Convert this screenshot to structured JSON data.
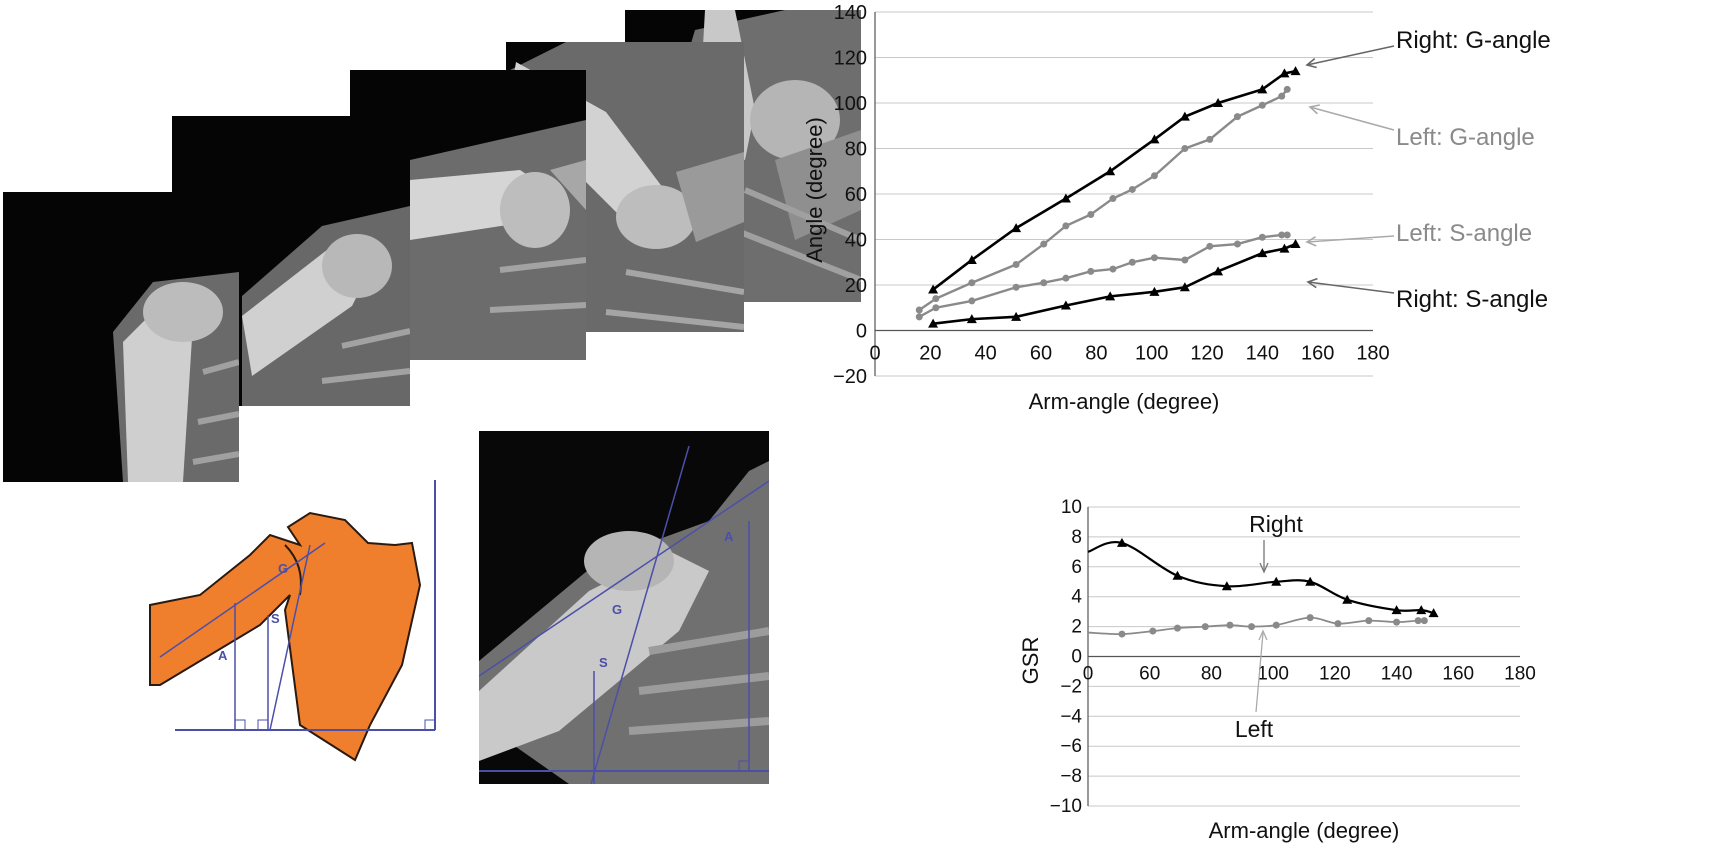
{
  "colors": {
    "right": "#000000",
    "left": "#8a8a8a",
    "scapula": "#ef7f2c",
    "annotation": "#4b4fa8"
  },
  "diagram": {
    "angle_labels": [
      "A",
      "G",
      "S"
    ]
  },
  "chart_data": [
    {
      "type": "line",
      "xlabel": "Arm-angle (degree)",
      "ylabel": "Angle (degree)",
      "xlim": [
        0,
        180
      ],
      "ylim": [
        -20,
        140
      ],
      "xticks": [
        "0",
        "20",
        "40",
        "60",
        "80",
        "100",
        "120",
        "140",
        "160",
        "180"
      ],
      "yticks": [
        "140",
        "120",
        "100",
        "80",
        "60",
        "40",
        "20",
        "0",
        "−20"
      ],
      "grid": true,
      "series": [
        {
          "name": "Right: G-angle",
          "color": "#000000",
          "marker": "triangle",
          "x": [
            21,
            35,
            51,
            69,
            85,
            101,
            112,
            124,
            140,
            148,
            152
          ],
          "y": [
            18,
            31,
            45,
            58,
            70,
            84,
            94,
            100,
            106,
            113,
            114
          ]
        },
        {
          "name": "Left: G-angle",
          "color": "#8a8a8a",
          "marker": "circle",
          "x": [
            16,
            22,
            35,
            51,
            61,
            69,
            78,
            86,
            93,
            101,
            112,
            121,
            131,
            140,
            147,
            149
          ],
          "y": [
            9,
            14,
            21,
            29,
            38,
            46,
            51,
            58,
            62,
            68,
            80,
            84,
            94,
            99,
            103,
            106
          ]
        },
        {
          "name": "Left: S-angle",
          "color": "#8a8a8a",
          "marker": "circle",
          "x": [
            16,
            22,
            35,
            51,
            61,
            69,
            78,
            86,
            93,
            101,
            112,
            121,
            131,
            140,
            147,
            149
          ],
          "y": [
            6,
            10,
            13,
            19,
            21,
            23,
            26,
            27,
            30,
            32,
            31,
            37,
            38,
            41,
            42,
            42
          ]
        },
        {
          "name": "Right: S-angle",
          "color": "#000000",
          "marker": "triangle",
          "x": [
            21,
            35,
            51,
            69,
            85,
            101,
            112,
            124,
            140,
            148,
            152
          ],
          "y": [
            3,
            5,
            6,
            11,
            15,
            17,
            19,
            26,
            34,
            36,
            38
          ]
        }
      ]
    },
    {
      "type": "line",
      "xlabel": "Arm-angle (degree)",
      "ylabel": "GSR",
      "xlim": [
        40,
        180
      ],
      "ylim": [
        -10,
        10
      ],
      "xticks": [
        "0",
        "60",
        "80",
        "100",
        "120",
        "140",
        "160",
        "180"
      ],
      "yticks": [
        "10",
        "8",
        "6",
        "4",
        "2",
        "0",
        "−2",
        "−4",
        "−6",
        "−8",
        "−10"
      ],
      "grid": true,
      "series": [
        {
          "name": "Right",
          "color": "#000000",
          "marker": "triangle",
          "x": [
            40,
            51,
            69,
            85,
            101,
            112,
            124,
            140,
            148,
            152
          ],
          "y": [
            7.0,
            7.6,
            5.4,
            4.7,
            5.0,
            5.0,
            3.8,
            3.1,
            3.1,
            2.9
          ]
        },
        {
          "name": "Left",
          "color": "#8a8a8a",
          "marker": "circle",
          "x": [
            40,
            51,
            61,
            69,
            78,
            86,
            93,
            101,
            112,
            121,
            131,
            140,
            147,
            149
          ],
          "y": [
            1.6,
            1.5,
            1.7,
            1.9,
            2.0,
            2.1,
            2.0,
            2.1,
            2.6,
            2.2,
            2.4,
            2.3,
            2.4,
            2.4
          ]
        }
      ]
    }
  ]
}
